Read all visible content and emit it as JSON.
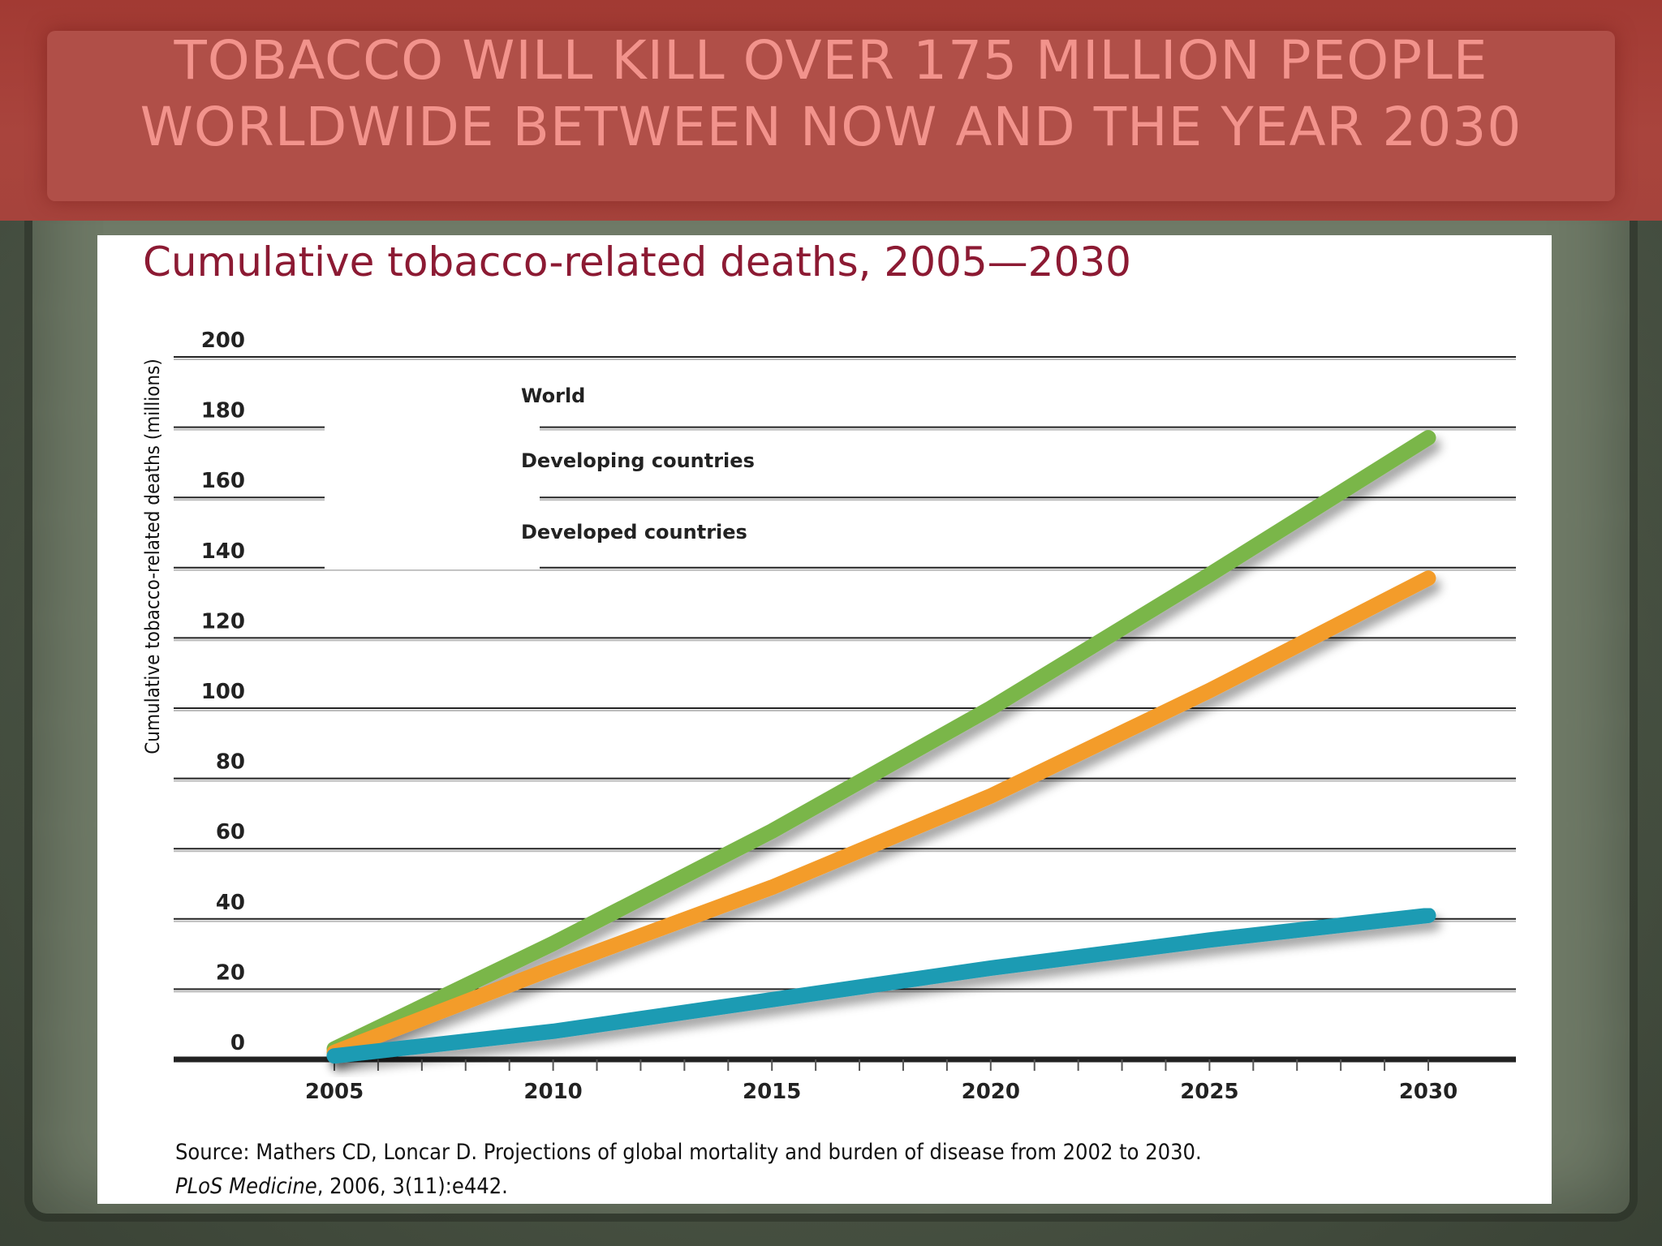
{
  "slide": {
    "title_line1": "TOBACCO WILL KILL OVER 175 MILLION PEOPLE",
    "title_line2": "WORLDWIDE BETWEEN NOW AND THE YEAR 2030"
  },
  "source": {
    "line1": "Source: Mathers CD, Loncar D. Projections of global mortality and burden of disease from 2002 to 2030.",
    "journal": "PLoS Medicine",
    "line2_rest": ", 2006, 3(11):e442."
  },
  "colors": {
    "title_band": "#a9443d",
    "title_text": "#f2938c",
    "chart_title": "#8c1a33"
  },
  "chart_data": {
    "type": "line",
    "title": "Cumulative tobacco-related deaths, 2005—2030",
    "xlabel": "",
    "ylabel": "Cumulative tobacco-related deaths (millions)",
    "xlim": [
      2005,
      2030
    ],
    "ylim": [
      0,
      200
    ],
    "x_ticks": [
      2005,
      2010,
      2015,
      2020,
      2025,
      2030
    ],
    "y_ticks": [
      0,
      20,
      40,
      60,
      80,
      100,
      120,
      140,
      160,
      180,
      200
    ],
    "grid": true,
    "legend_position": "top-left",
    "x": [
      2005,
      2010,
      2015,
      2020,
      2025,
      2030
    ],
    "series": [
      {
        "name": "World",
        "color": "#7ab648",
        "values": [
          3,
          33,
          65,
          100,
          138,
          177
        ]
      },
      {
        "name": "Developing countries",
        "color": "#f39c2b",
        "values": [
          2,
          26,
          49,
          75,
          105,
          137
        ]
      },
      {
        "name": "Developed countries",
        "color": "#1a9bb3",
        "values": [
          1,
          8,
          17,
          26,
          34,
          41
        ]
      }
    ]
  }
}
